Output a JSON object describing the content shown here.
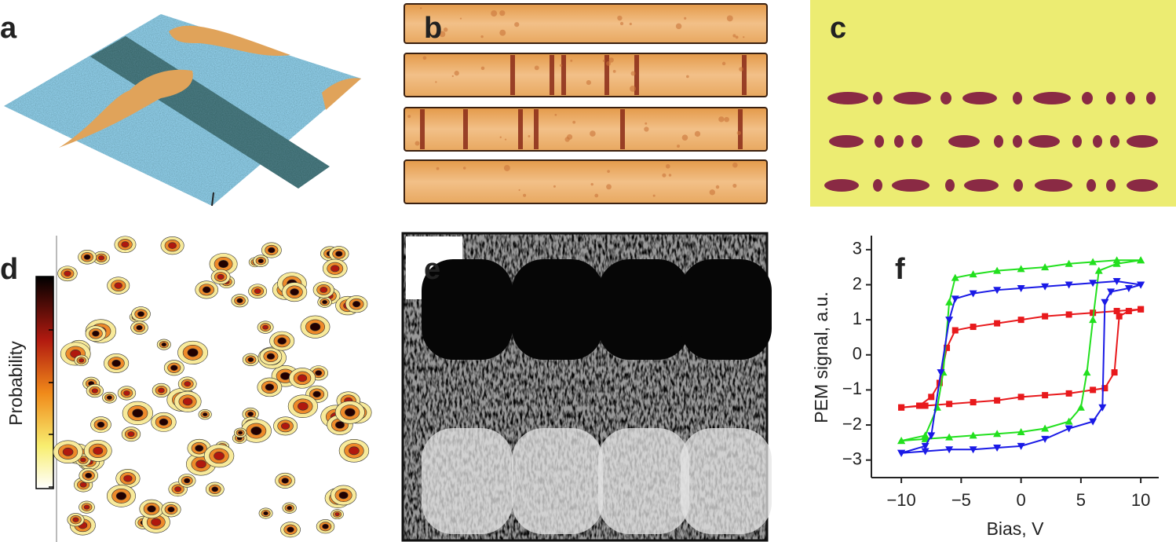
{
  "panels": {
    "a": "a",
    "b": "b",
    "c": "c",
    "d": "d",
    "e": "e",
    "f": "f"
  },
  "colorbar_label": "Probability",
  "chart_data": {
    "type": "line",
    "xlabel": "Bias, V",
    "ylabel": "PEM signal, a.u.",
    "xlim": [
      -12.5,
      11.5
    ],
    "ylim": [
      -3.5,
      3.4
    ],
    "xticks": [
      {
        "value": -10,
        "label": "−10"
      },
      {
        "value": -5,
        "label": "−5"
      },
      0,
      5,
      10
    ],
    "yticks": [
      3,
      2,
      1,
      0,
      {
        "value": -1,
        "label": "−1"
      },
      {
        "value": -2,
        "label": "−2"
      },
      {
        "value": -3,
        "label": "−3"
      }
    ],
    "series": [
      {
        "color": "#e8191c",
        "marker": "square",
        "x": [
          -10,
          -8,
          -6,
          -4,
          -2,
          0,
          2,
          4,
          6,
          7,
          7.8,
          8.2,
          9,
          10,
          10,
          8,
          6,
          4,
          2,
          0,
          -2,
          -4,
          -5.5,
          -6.2,
          -6.8,
          -7.5,
          -8.5,
          -10
        ],
        "values": [
          -1.5,
          -1.45,
          -1.4,
          -1.35,
          -1.3,
          -1.2,
          -1.15,
          -1.1,
          -1.0,
          -0.95,
          -0.5,
          1.1,
          1.25,
          1.3,
          1.3,
          1.25,
          1.2,
          1.15,
          1.1,
          1.0,
          0.9,
          0.8,
          0.7,
          0.2,
          -0.8,
          -1.2,
          -1.45,
          -1.5
        ]
      },
      {
        "color": "#22e01e",
        "marker": "triangle-up",
        "x": [
          -10,
          -8,
          -6,
          -4,
          -2,
          0,
          2,
          4,
          5,
          5.5,
          6,
          6.5,
          8,
          10,
          10,
          8,
          6,
          4,
          2,
          0,
          -2,
          -4,
          -5.5,
          -6,
          -6.5,
          -7,
          -8,
          -10
        ],
        "values": [
          -2.45,
          -2.4,
          -2.35,
          -2.3,
          -2.25,
          -2.2,
          -2.1,
          -1.9,
          -1.5,
          -0.5,
          1.0,
          2.4,
          2.6,
          2.7,
          2.7,
          2.7,
          2.65,
          2.6,
          2.5,
          2.45,
          2.4,
          2.3,
          2.2,
          1.5,
          -0.5,
          -1.5,
          -2.3,
          -2.45
        ]
      },
      {
        "color": "#1a1ae6",
        "marker": "triangle-down",
        "x": [
          -10,
          -8,
          -6,
          -4,
          -2,
          0,
          2,
          4,
          6,
          6.8,
          7,
          7.5,
          9,
          10,
          10,
          8,
          6,
          4,
          2,
          0,
          -2,
          -4,
          -5.5,
          -6,
          -6.7,
          -7.5,
          -8,
          -10
        ],
        "values": [
          -2.8,
          -2.75,
          -2.7,
          -2.7,
          -2.65,
          -2.6,
          -2.4,
          -2.1,
          -1.9,
          -1.5,
          1.5,
          1.8,
          1.9,
          2.0,
          2.0,
          2.1,
          2.05,
          2.0,
          1.95,
          1.9,
          1.85,
          1.75,
          1.6,
          1.0,
          -0.5,
          -2.3,
          -2.6,
          -2.8
        ]
      }
    ]
  }
}
